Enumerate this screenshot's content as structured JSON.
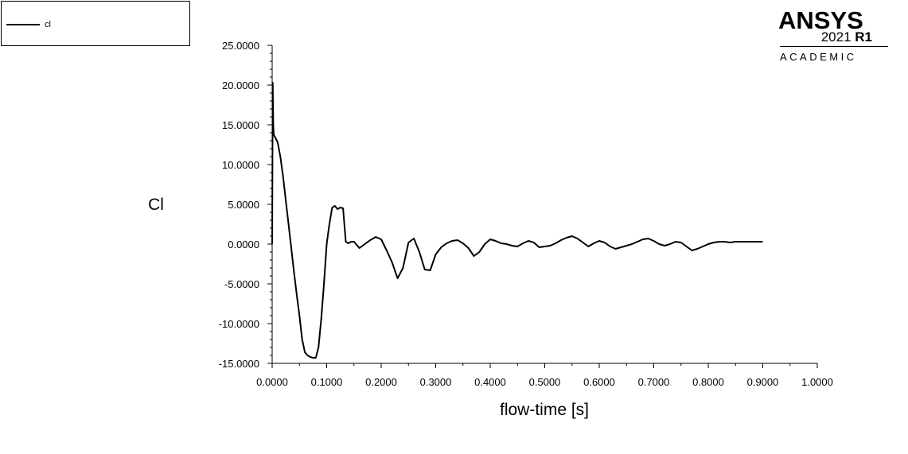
{
  "legend": {
    "label": "cl"
  },
  "logo": {
    "brand": "ANSYS",
    "version_year": "2021",
    "version_release": "R1",
    "edition": "ACADEMIC"
  },
  "chart_data": {
    "type": "line",
    "title": "",
    "xlabel": "flow-time [s]",
    "ylabel": "Cl",
    "xlim": [
      0,
      1
    ],
    "ylim": [
      -15,
      25
    ],
    "xticks": [
      "0.0000",
      "0.1000",
      "0.2000",
      "0.3000",
      "0.4000",
      "0.5000",
      "0.6000",
      "0.7000",
      "0.8000",
      "0.9000",
      "1.0000"
    ],
    "yticks": [
      "25.0000",
      "20.0000",
      "15.0000",
      "10.0000",
      "5.0000",
      "0.0000",
      "-5.0000",
      "-10.0000",
      "-15.0000"
    ],
    "grid": false,
    "legend_position": "top-left",
    "line_color": "#000000",
    "series": [
      {
        "name": "cl",
        "x": [
          0.0,
          0.001,
          0.002,
          0.003,
          0.005,
          0.01,
          0.015,
          0.02,
          0.025,
          0.03,
          0.035,
          0.04,
          0.045,
          0.05,
          0.055,
          0.06,
          0.065,
          0.07,
          0.075,
          0.08,
          0.085,
          0.09,
          0.095,
          0.1,
          0.105,
          0.11,
          0.115,
          0.12,
          0.125,
          0.13,
          0.135,
          0.14,
          0.145,
          0.15,
          0.16,
          0.17,
          0.18,
          0.19,
          0.2,
          0.21,
          0.22,
          0.23,
          0.24,
          0.25,
          0.26,
          0.27,
          0.28,
          0.29,
          0.3,
          0.31,
          0.32,
          0.33,
          0.34,
          0.35,
          0.36,
          0.37,
          0.38,
          0.39,
          0.4,
          0.41,
          0.42,
          0.43,
          0.44,
          0.45,
          0.46,
          0.47,
          0.48,
          0.49,
          0.5,
          0.51,
          0.52,
          0.53,
          0.54,
          0.55,
          0.56,
          0.57,
          0.58,
          0.59,
          0.6,
          0.61,
          0.62,
          0.63,
          0.64,
          0.65,
          0.66,
          0.67,
          0.68,
          0.69,
          0.7,
          0.71,
          0.72,
          0.73,
          0.74,
          0.75,
          0.76,
          0.77,
          0.78,
          0.79,
          0.8,
          0.81,
          0.82,
          0.83,
          0.84,
          0.85,
          0.86,
          0.87,
          0.88,
          0.89,
          0.9
        ],
        "y": [
          0.0,
          20.3,
          14.8,
          13.7,
          13.5,
          12.8,
          11.0,
          8.5,
          5.5,
          2.5,
          -0.5,
          -3.5,
          -6.3,
          -9.0,
          -12.0,
          -13.6,
          -14.0,
          -14.2,
          -14.3,
          -14.3,
          -13.0,
          -9.5,
          -5.0,
          0.0,
          2.5,
          4.6,
          4.8,
          4.4,
          4.6,
          4.5,
          0.3,
          0.1,
          0.3,
          0.3,
          -0.5,
          0.0,
          0.5,
          0.9,
          0.6,
          -0.8,
          -2.3,
          -4.3,
          -3.0,
          0.2,
          0.7,
          -1.0,
          -3.2,
          -3.3,
          -1.3,
          -0.4,
          0.1,
          0.4,
          0.5,
          0.1,
          -0.5,
          -1.5,
          -1.0,
          0.0,
          0.6,
          0.4,
          0.1,
          0.0,
          -0.2,
          -0.3,
          0.1,
          0.4,
          0.2,
          -0.4,
          -0.3,
          -0.2,
          0.1,
          0.5,
          0.8,
          1.0,
          0.7,
          0.2,
          -0.3,
          0.1,
          0.4,
          0.2,
          -0.3,
          -0.6,
          -0.4,
          -0.2,
          0.0,
          0.3,
          0.6,
          0.7,
          0.4,
          0.0,
          -0.2,
          0.0,
          0.3,
          0.2,
          -0.3,
          -0.8,
          -0.6,
          -0.3,
          0.0,
          0.2,
          0.3,
          0.3,
          0.2,
          0.3,
          0.3,
          0.3,
          0.3,
          0.3,
          0.3
        ]
      }
    ]
  }
}
